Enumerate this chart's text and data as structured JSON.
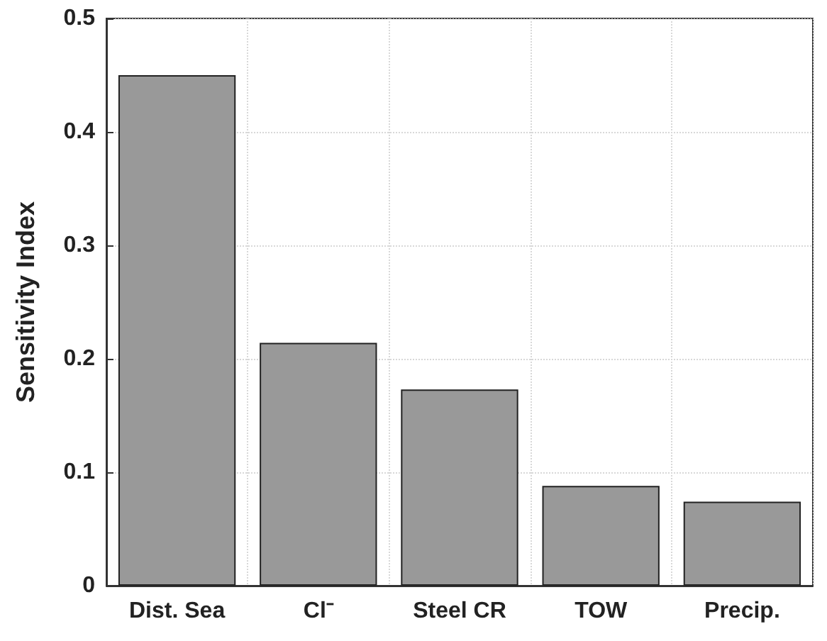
{
  "chart_data": {
    "type": "bar",
    "ylabel": "Sensitivity Index",
    "categories": [
      "Dist. Sea",
      "Cl⁻",
      "Steel CR",
      "TOW",
      "Precip."
    ],
    "values": [
      0.45,
      0.214,
      0.173,
      0.088,
      0.074
    ],
    "color": "#999999",
    "ylim": [
      0,
      0.5
    ],
    "yticks": [
      0,
      0.1,
      0.2,
      0.3,
      0.4,
      0.5
    ],
    "grid": true
  }
}
